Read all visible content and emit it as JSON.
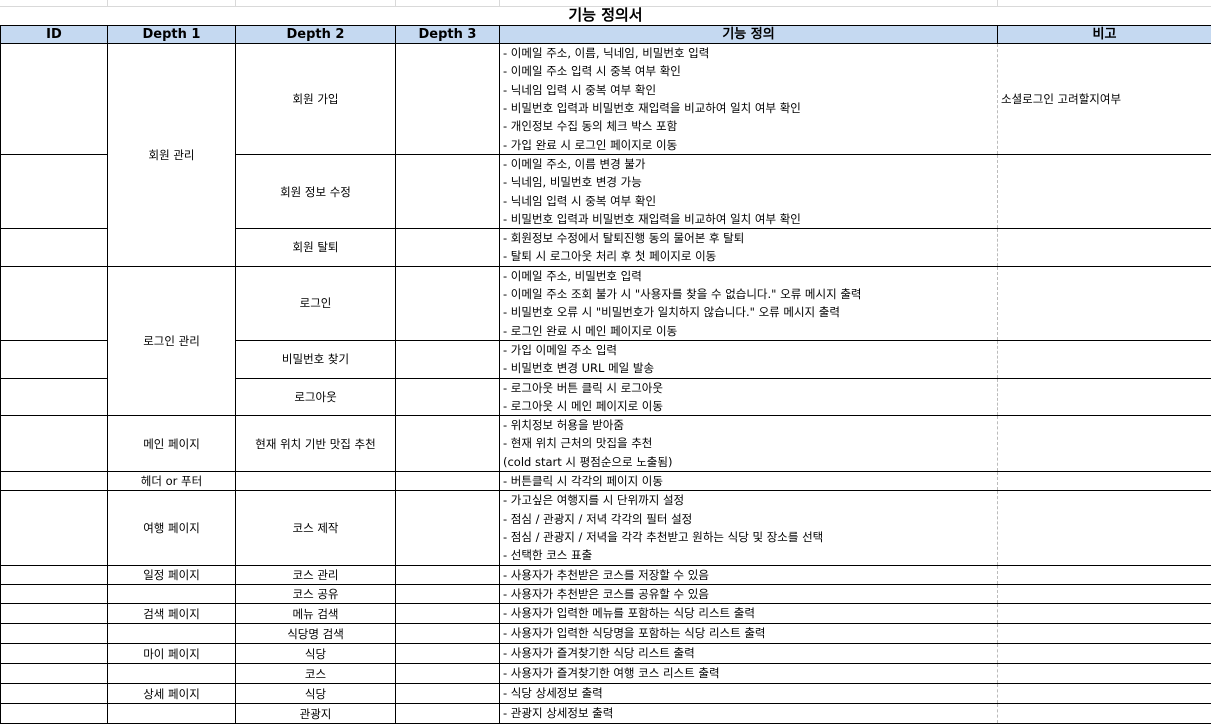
{
  "title": "기능 정의서",
  "headers": {
    "id": "ID",
    "depth1": "Depth 1",
    "depth2": "Depth 2",
    "depth3": "Depth 3",
    "definition": "기능 정의",
    "note": "비고"
  },
  "groups": {
    "member": "회원 관리",
    "login": "로그인 관리",
    "main": "메인 페이지",
    "header": "헤더 or 푸터",
    "travel": "여행 페이지",
    "schedule": "일정 페이지",
    "search": "검색 페이지",
    "my": "마이 페이지",
    "detail": "상세 페이지"
  },
  "rows": [
    {
      "depth2": "회원 가입",
      "lines": [
        "- 이메일 주소, 이름, 닉네임, 비밀번호 입력",
        "- 이메일 주소 입력 시 중복 여부 확인",
        "- 닉네임 입력 시 중복 여부 확인",
        "- 비밀번호 입력과 비밀번호 재입력을 비교하여 일치 여부 확인",
        "- 개인정보 수집 동의 체크 박스 포함",
        "- 가입 완료 시 로그인 페이지로 이동"
      ],
      "note": "소셜로그인 고려할지여부"
    },
    {
      "depth2": "회원 정보 수정",
      "lines": [
        "- 이메일 주소, 이름 변경 불가",
        "- 닉네임, 비밀번호 변경 가능",
        "- 닉네임 입력 시 중복 여부 확인",
        "- 비밀번호 입력과 비밀번호 재입력을 비교하여 일치 여부 확인"
      ]
    },
    {
      "depth2": "회원 탈퇴",
      "lines": [
        "- 회원정보 수정에서 탈퇴진행 동의 물어본 후 탈퇴",
        "- 탈퇴 시 로그아웃 처리 후 첫 페이지로 이동"
      ]
    },
    {
      "depth2": "로그인",
      "lines": [
        "- 이메일 주소, 비밀번호 입력",
        "- 이메일 주소 조회 불가 시 \"사용자를 찾을 수 없습니다.\" 오류 메시지 출력",
        "- 비밀번호 오류 시 \"비밀번호가 일치하지 않습니다.\" 오류 메시지 출력",
        "- 로그인 완료 시 메인 페이지로 이동"
      ]
    },
    {
      "depth2": "비밀번호 찾기",
      "lines": [
        "- 가입 이메일 주소 입력",
        "- 비밀번호 변경 URL 메일 발송"
      ]
    },
    {
      "depth2": "로그아웃",
      "lines": [
        "- 로그아웃 버튼 클릭 시 로그아웃",
        "- 로그아웃 시 메인 페이지로 이동"
      ]
    },
    {
      "depth2": "현재 위치 기반 맛집 추천",
      "lines": [
        "- 위치정보 허용을 받아줌",
        "- 현재 위치 근처의 맛집을 추천",
        "  (cold start 시 평점순으로 노출됨)"
      ]
    },
    {
      "depth2": "",
      "lines": [
        "- 버튼클릭 시 각각의 페이지 이동"
      ]
    },
    {
      "depth2": "코스 제작",
      "lines": [
        "- 가고싶은 여행지를 시 단위까지 설정",
        "- 점심 / 관광지 / 저녁 각각의 필터 설정",
        "- 점심 / 관광지 / 저녁을 각각 추천받고 원하는 식당 및 장소를 선택",
        "- 선택한 코스 표출"
      ]
    },
    {
      "depth2": "코스 관리",
      "lines": [
        "- 사용자가 추천받은 코스를 저장할 수 있음"
      ]
    },
    {
      "depth2": "코스 공유",
      "lines": [
        "- 사용자가 추천받은 코스를 공유할 수 있음"
      ]
    },
    {
      "depth2": "메뉴 검색",
      "lines": [
        "- 사용자가 입력한 메뉴를 포함하는 식당 리스트 출력"
      ]
    },
    {
      "depth2": "식당명 검색",
      "lines": [
        "- 사용자가 입력한 식당명을 포함하는 식당 리스트 출력"
      ]
    },
    {
      "depth2": "식당",
      "lines": [
        "- 사용자가 즐겨찾기한 식당 리스트 출력"
      ]
    },
    {
      "depth2": "코스",
      "lines": [
        "- 사용자가 즐겨찾기한 여행 코스 리스트 출력"
      ]
    },
    {
      "depth2": "식당",
      "lines": [
        "- 식당 상세정보 출력"
      ]
    },
    {
      "depth2": "관광지",
      "lines": [
        "- 관광지 상세정보 출력"
      ]
    }
  ]
}
